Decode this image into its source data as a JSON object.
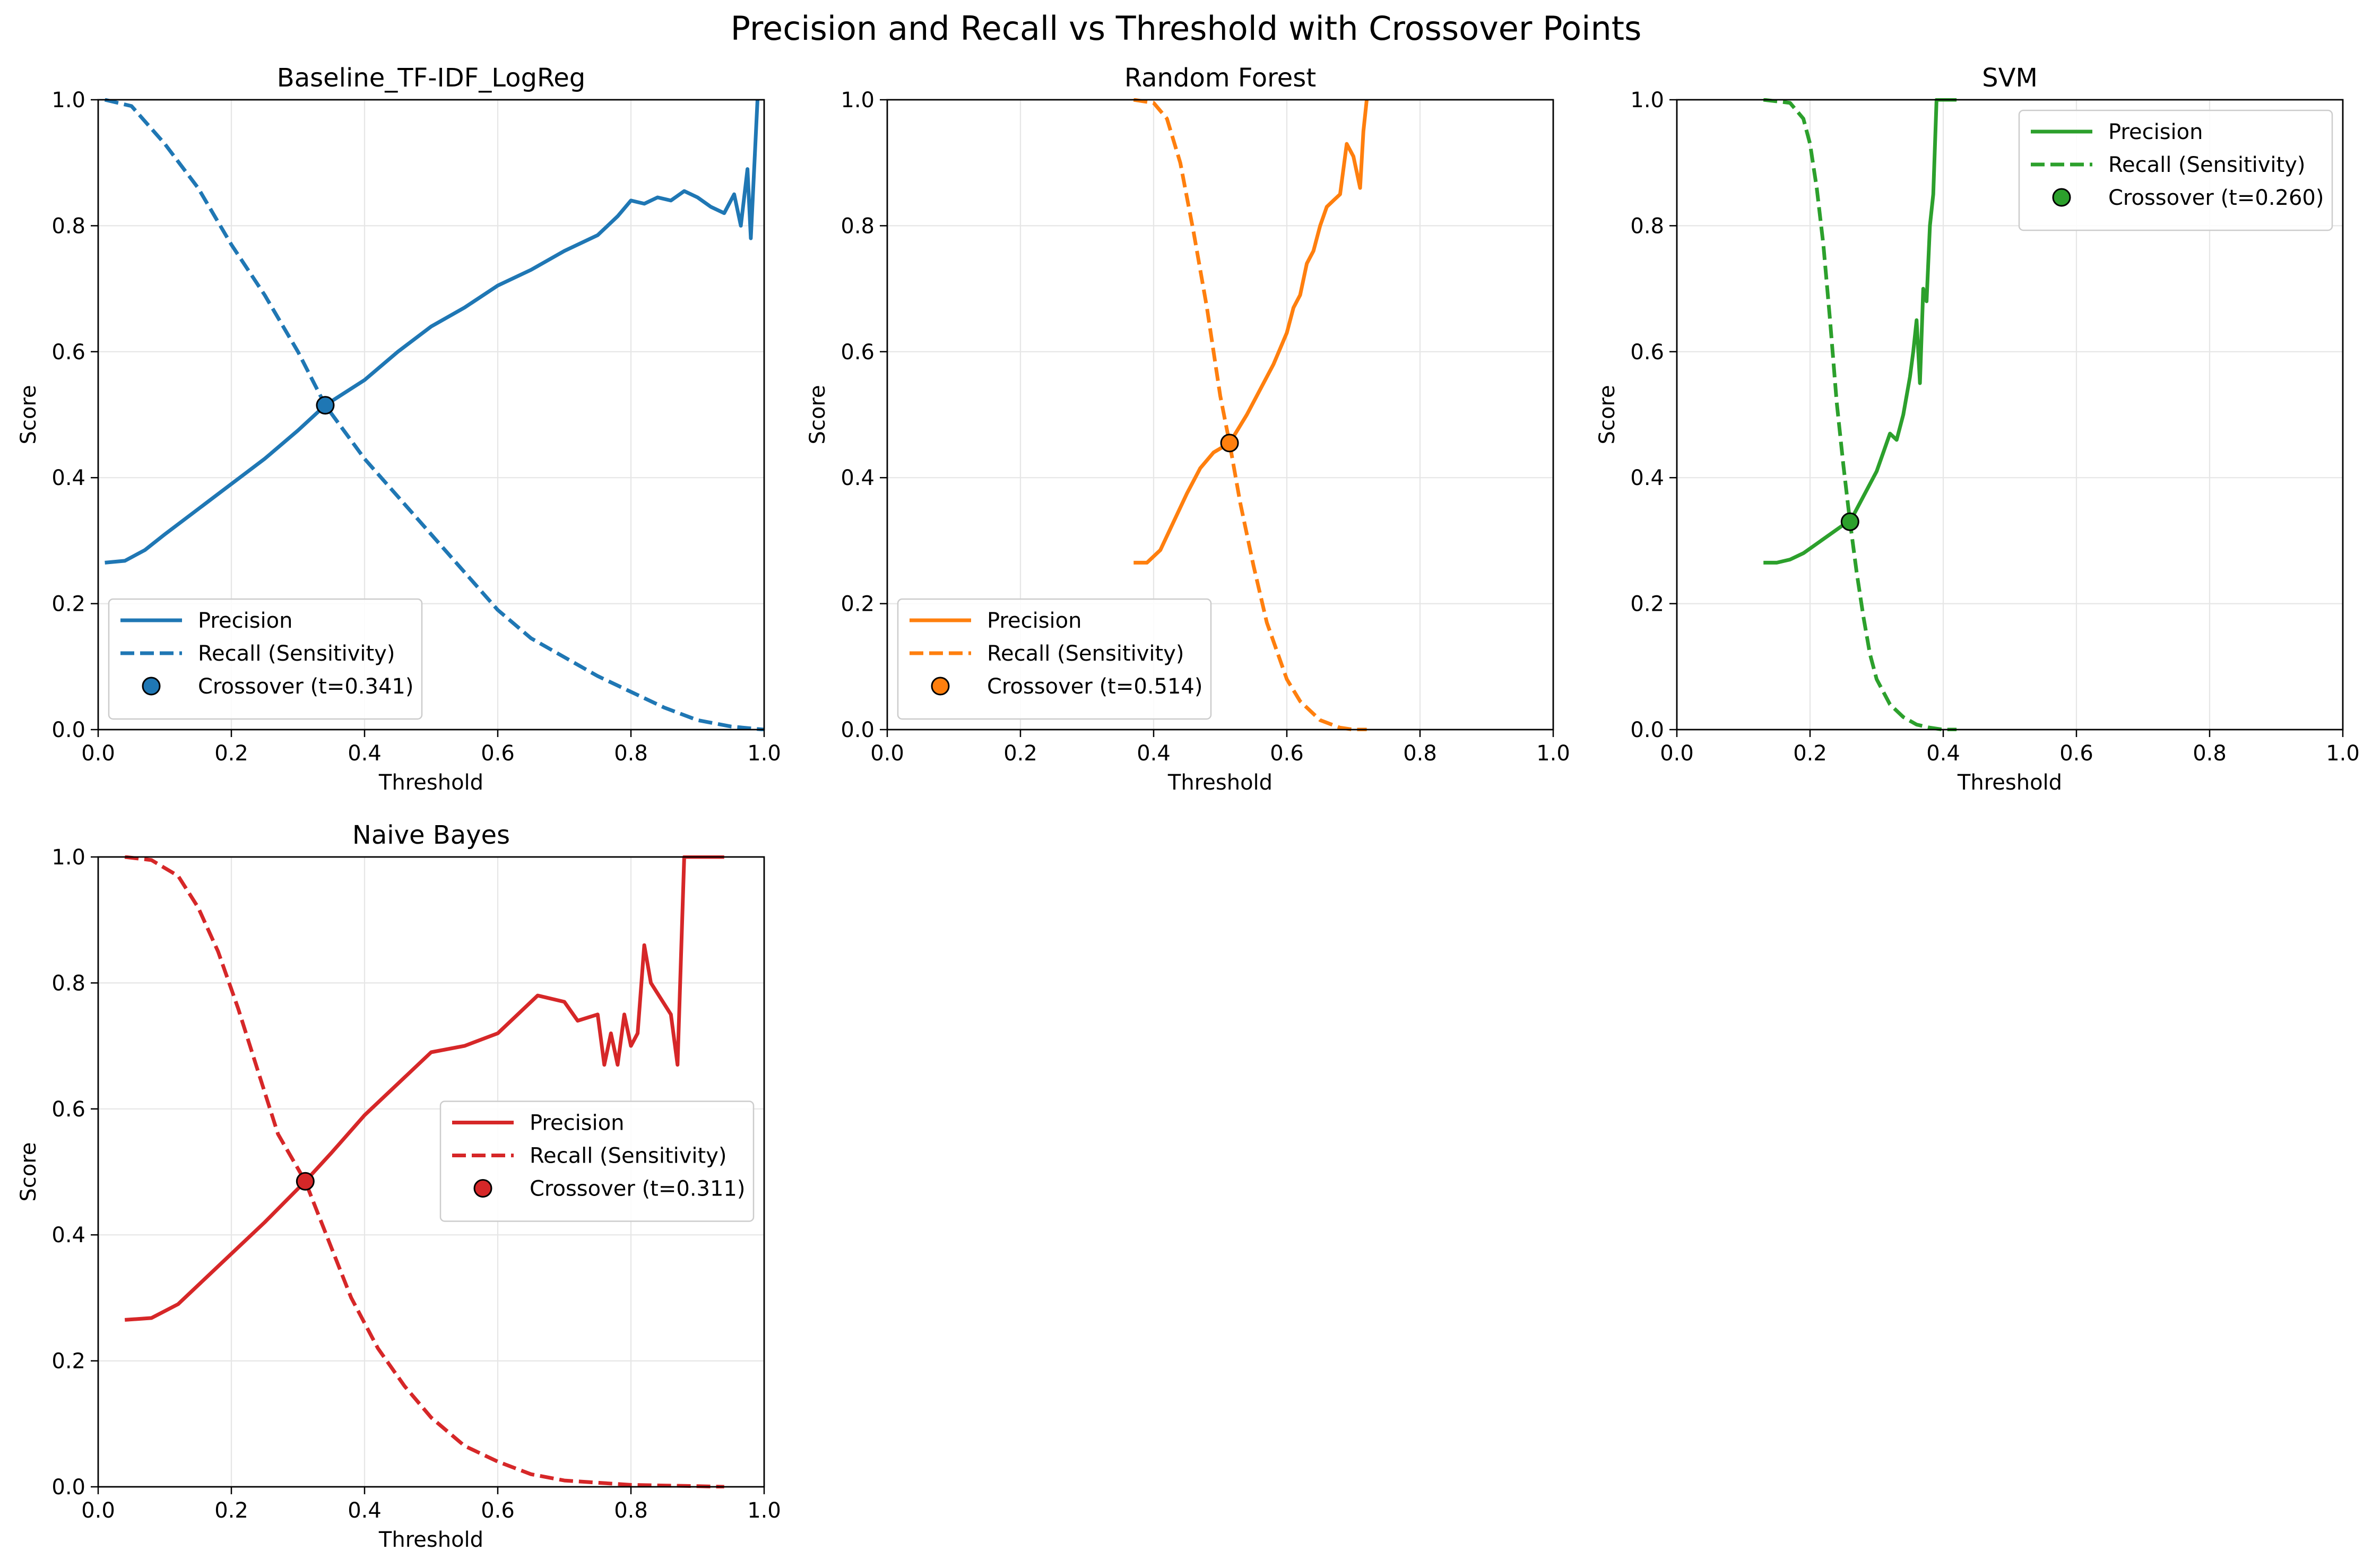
{
  "figure": {
    "suptitle": "Precision and Recall vs Threshold with Crossover Points"
  },
  "chart_data": [
    {
      "type": "line",
      "title": "Baseline_TF-IDF_LogReg",
      "xlabel": "Threshold",
      "ylabel": "Score",
      "xlim": [
        0,
        1
      ],
      "ylim": [
        0,
        1
      ],
      "xticks": [
        "0.0",
        "0.2",
        "0.4",
        "0.6",
        "0.8",
        "1.0"
      ],
      "yticks": [
        "0.0",
        "0.2",
        "0.4",
        "0.6",
        "0.8",
        "1.0"
      ],
      "grid": true,
      "legend_position": "lower-left",
      "color": "#1f77b4",
      "series": [
        {
          "name": "Precision",
          "style": "solid",
          "x": [
            0.01,
            0.04,
            0.07,
            0.1,
            0.15,
            0.2,
            0.25,
            0.3,
            0.341,
            0.4,
            0.45,
            0.5,
            0.55,
            0.6,
            0.65,
            0.7,
            0.75,
            0.78,
            0.8,
            0.82,
            0.84,
            0.86,
            0.88,
            0.9,
            0.92,
            0.94,
            0.955,
            0.965,
            0.975,
            0.98,
            0.99
          ],
          "y": [
            0.265,
            0.268,
            0.285,
            0.31,
            0.35,
            0.39,
            0.43,
            0.475,
            0.515,
            0.555,
            0.6,
            0.64,
            0.67,
            0.705,
            0.73,
            0.76,
            0.785,
            0.815,
            0.84,
            0.835,
            0.845,
            0.84,
            0.855,
            0.845,
            0.83,
            0.82,
            0.85,
            0.8,
            0.89,
            0.78,
            1.0
          ]
        },
        {
          "name": "Recall (Sensitivity)",
          "style": "dashed",
          "x": [
            0.01,
            0.05,
            0.1,
            0.15,
            0.2,
            0.25,
            0.3,
            0.341,
            0.4,
            0.45,
            0.5,
            0.55,
            0.6,
            0.65,
            0.7,
            0.75,
            0.8,
            0.85,
            0.9,
            0.95,
            1.0
          ],
          "y": [
            1.0,
            0.99,
            0.93,
            0.86,
            0.77,
            0.69,
            0.6,
            0.515,
            0.43,
            0.37,
            0.31,
            0.25,
            0.19,
            0.145,
            0.115,
            0.085,
            0.06,
            0.035,
            0.015,
            0.005,
            0.0
          ]
        }
      ],
      "crossover": {
        "name": "Crossover (t=0.341)",
        "x": 0.341,
        "y": 0.515
      }
    },
    {
      "type": "line",
      "title": "Random Forest",
      "xlabel": "Threshold",
      "ylabel": "Score",
      "xlim": [
        0,
        1
      ],
      "ylim": [
        0,
        1
      ],
      "xticks": [
        "0.0",
        "0.2",
        "0.4",
        "0.6",
        "0.8",
        "1.0"
      ],
      "yticks": [
        "0.0",
        "0.2",
        "0.4",
        "0.6",
        "0.8",
        "1.0"
      ],
      "grid": true,
      "legend_position": "lower-left",
      "color": "#ff7f0e",
      "series": [
        {
          "name": "Precision",
          "style": "solid",
          "x": [
            0.37,
            0.39,
            0.41,
            0.43,
            0.45,
            0.47,
            0.49,
            0.514,
            0.54,
            0.56,
            0.58,
            0.6,
            0.61,
            0.62,
            0.63,
            0.64,
            0.65,
            0.66,
            0.67,
            0.68,
            0.69,
            0.7,
            0.71,
            0.715,
            0.72
          ],
          "y": [
            0.265,
            0.265,
            0.285,
            0.33,
            0.375,
            0.415,
            0.44,
            0.455,
            0.5,
            0.54,
            0.58,
            0.63,
            0.67,
            0.69,
            0.74,
            0.76,
            0.8,
            0.83,
            0.84,
            0.85,
            0.93,
            0.91,
            0.86,
            0.95,
            1.0
          ]
        },
        {
          "name": "Recall (Sensitivity)",
          "style": "dashed",
          "x": [
            0.37,
            0.4,
            0.42,
            0.44,
            0.46,
            0.48,
            0.5,
            0.514,
            0.53,
            0.55,
            0.57,
            0.6,
            0.62,
            0.65,
            0.68,
            0.7,
            0.72
          ],
          "y": [
            1.0,
            0.995,
            0.97,
            0.9,
            0.79,
            0.67,
            0.53,
            0.455,
            0.36,
            0.26,
            0.17,
            0.08,
            0.045,
            0.015,
            0.003,
            0.0,
            0.0
          ]
        }
      ],
      "crossover": {
        "name": "Crossover (t=0.514)",
        "x": 0.514,
        "y": 0.455
      }
    },
    {
      "type": "line",
      "title": "SVM",
      "xlabel": "Threshold",
      "ylabel": "Score",
      "xlim": [
        0,
        1
      ],
      "ylim": [
        0,
        1
      ],
      "xticks": [
        "0.0",
        "0.2",
        "0.4",
        "0.6",
        "0.8",
        "1.0"
      ],
      "yticks": [
        "0.0",
        "0.2",
        "0.4",
        "0.6",
        "0.8",
        "1.0"
      ],
      "grid": true,
      "legend_position": "upper-right",
      "color": "#2ca02c",
      "series": [
        {
          "name": "Precision",
          "style": "solid",
          "x": [
            0.13,
            0.15,
            0.17,
            0.19,
            0.21,
            0.23,
            0.25,
            0.26,
            0.28,
            0.3,
            0.31,
            0.32,
            0.33,
            0.34,
            0.345,
            0.35,
            0.355,
            0.36,
            0.365,
            0.37,
            0.375,
            0.38,
            0.385,
            0.39,
            0.42
          ],
          "y": [
            0.265,
            0.265,
            0.27,
            0.28,
            0.295,
            0.31,
            0.325,
            0.33,
            0.37,
            0.41,
            0.44,
            0.47,
            0.46,
            0.5,
            0.53,
            0.56,
            0.6,
            0.65,
            0.55,
            0.7,
            0.68,
            0.8,
            0.85,
            1.0,
            1.0
          ]
        },
        {
          "name": "Recall (Sensitivity)",
          "style": "dashed",
          "x": [
            0.13,
            0.17,
            0.19,
            0.2,
            0.21,
            0.22,
            0.23,
            0.24,
            0.25,
            0.26,
            0.27,
            0.28,
            0.29,
            0.3,
            0.32,
            0.34,
            0.36,
            0.38,
            0.4,
            0.42
          ],
          "y": [
            1.0,
            0.995,
            0.97,
            0.93,
            0.86,
            0.77,
            0.65,
            0.52,
            0.42,
            0.33,
            0.25,
            0.18,
            0.12,
            0.08,
            0.04,
            0.02,
            0.008,
            0.003,
            0.0,
            0.0
          ]
        }
      ],
      "crossover": {
        "name": "Crossover (t=0.260)",
        "x": 0.26,
        "y": 0.33
      }
    },
    {
      "type": "line",
      "title": "Naive Bayes",
      "xlabel": "Threshold",
      "ylabel": "Score",
      "xlim": [
        0,
        1
      ],
      "ylim": [
        0,
        1
      ],
      "xticks": [
        "0.0",
        "0.2",
        "0.4",
        "0.6",
        "0.8",
        "1.0"
      ],
      "yticks": [
        "0.0",
        "0.2",
        "0.4",
        "0.6",
        "0.8",
        "1.0"
      ],
      "grid": true,
      "legend_position": "center-right",
      "color": "#d62728",
      "series": [
        {
          "name": "Precision",
          "style": "solid",
          "x": [
            0.04,
            0.08,
            0.12,
            0.16,
            0.2,
            0.25,
            0.311,
            0.35,
            0.4,
            0.45,
            0.5,
            0.55,
            0.6,
            0.63,
            0.66,
            0.7,
            0.72,
            0.75,
            0.76,
            0.77,
            0.78,
            0.79,
            0.8,
            0.81,
            0.82,
            0.83,
            0.86,
            0.87,
            0.88,
            0.9,
            0.94
          ],
          "y": [
            0.265,
            0.268,
            0.29,
            0.33,
            0.37,
            0.42,
            0.485,
            0.53,
            0.59,
            0.64,
            0.69,
            0.7,
            0.72,
            0.75,
            0.78,
            0.77,
            0.74,
            0.75,
            0.67,
            0.72,
            0.67,
            0.75,
            0.7,
            0.72,
            0.86,
            0.8,
            0.75,
            0.67,
            1.0,
            1.0,
            1.0
          ]
        },
        {
          "name": "Recall (Sensitivity)",
          "style": "dashed",
          "x": [
            0.04,
            0.08,
            0.12,
            0.15,
            0.18,
            0.21,
            0.24,
            0.27,
            0.311,
            0.35,
            0.38,
            0.42,
            0.46,
            0.5,
            0.55,
            0.6,
            0.65,
            0.7,
            0.8,
            0.9,
            0.94
          ],
          "y": [
            1.0,
            0.995,
            0.97,
            0.92,
            0.85,
            0.76,
            0.66,
            0.56,
            0.485,
            0.38,
            0.3,
            0.22,
            0.16,
            0.11,
            0.065,
            0.04,
            0.02,
            0.01,
            0.003,
            0.001,
            0.0
          ]
        }
      ],
      "crossover": {
        "name": "Crossover (t=0.311)",
        "x": 0.311,
        "y": 0.485
      }
    }
  ]
}
